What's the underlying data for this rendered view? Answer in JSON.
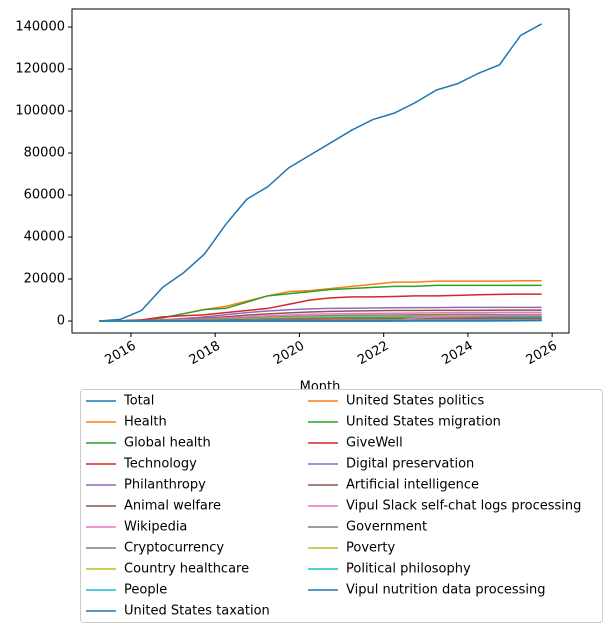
{
  "chart_data": {
    "type": "line",
    "xlabel": "Month",
    "x": [
      2015.25,
      2015.75,
      2016.25,
      2016.75,
      2017.25,
      2017.75,
      2018.25,
      2018.75,
      2019.25,
      2019.75,
      2020.25,
      2020.75,
      2021.25,
      2021.75,
      2022.25,
      2022.75,
      2023.25,
      2023.75,
      2024.25,
      2024.75,
      2025.25,
      2025.75
    ],
    "xlim": [
      2014.6,
      2026.4
    ],
    "xticks": [
      2016,
      2018,
      2020,
      2022,
      2024,
      2026
    ],
    "ylim": [
      -5700,
      148600
    ],
    "yticks": [
      0,
      20000,
      40000,
      60000,
      80000,
      100000,
      120000,
      140000
    ],
    "series": [
      {
        "name": "Total",
        "color": "#1f77b4",
        "values": [
          0,
          800,
          5000,
          16000,
          23000,
          32000,
          46000,
          58000,
          64000,
          73000,
          79000,
          85000,
          91000,
          96000,
          99000,
          104000,
          110000,
          113000,
          118000,
          122000,
          136000,
          141500
        ]
      },
      {
        "name": "Health",
        "color": "#ff7f0e",
        "values": [
          0,
          100,
          500,
          1500,
          3500,
          5500,
          7000,
          9500,
          12000,
          14000,
          14500,
          15500,
          16500,
          17500,
          18500,
          18500,
          19000,
          19000,
          19000,
          19000,
          19200,
          19200
        ]
      },
      {
        "name": "Global health",
        "color": "#2ca02c",
        "values": [
          0,
          100,
          500,
          1500,
          3500,
          5500,
          6000,
          9000,
          12000,
          13000,
          14000,
          15000,
          15500,
          16000,
          16500,
          16500,
          17000,
          17000,
          17000,
          17000,
          17000,
          17000
        ]
      },
      {
        "name": "Technology",
        "color": "#d62728",
        "values": [
          0,
          100,
          500,
          2000,
          2500,
          3000,
          4000,
          5000,
          6000,
          8000,
          10000,
          11000,
          11500,
          11500,
          11700,
          12000,
          12000,
          12200,
          12500,
          12700,
          12800,
          12800
        ]
      },
      {
        "name": "Philanthropy",
        "color": "#9467bd",
        "values": [
          0,
          50,
          200,
          600,
          1200,
          2000,
          3000,
          4000,
          4800,
          5400,
          5800,
          6000,
          6100,
          6200,
          6300,
          6400,
          6400,
          6500,
          6500,
          6500,
          6500,
          6500
        ]
      },
      {
        "name": "Animal welfare",
        "color": "#8c564b",
        "values": [
          0,
          50,
          150,
          400,
          800,
          1300,
          2000,
          2800,
          3400,
          3900,
          4300,
          4600,
          4800,
          4900,
          5000,
          5000,
          5100,
          5100,
          5100,
          5200,
          5200,
          5200
        ]
      },
      {
        "name": "Wikipedia",
        "color": "#e377c2",
        "values": [
          0,
          30,
          100,
          300,
          600,
          1000,
          1500,
          2000,
          2500,
          2900,
          3200,
          3400,
          3500,
          3600,
          3700,
          3800,
          3900,
          4000,
          4000,
          4100,
          4100,
          4100
        ]
      },
      {
        "name": "Cryptocurrency",
        "color": "#7f7f7f",
        "values": [
          0,
          20,
          80,
          200,
          400,
          700,
          1000,
          1400,
          1800,
          2100,
          2400,
          2600,
          2700,
          2800,
          2900,
          3000,
          3000,
          3100,
          3100,
          3100,
          3100,
          3100
        ]
      },
      {
        "name": "Country healthcare",
        "color": "#bcbd22",
        "values": [
          0,
          10,
          50,
          150,
          300,
          500,
          800,
          1100,
          1400,
          1600,
          1800,
          2000,
          2100,
          2200,
          2300,
          2300,
          2400,
          2400,
          2400,
          2500,
          2500,
          2500
        ]
      },
      {
        "name": "People",
        "color": "#17becf",
        "values": [
          0,
          10,
          40,
          100,
          200,
          400,
          600,
          800,
          1000,
          1200,
          1400,
          1500,
          1600,
          1700,
          1800,
          1800,
          1900,
          1900,
          1900,
          2000,
          2000,
          2000
        ]
      },
      {
        "name": "United States taxation",
        "color": "#1f77b4",
        "values": [
          0,
          0,
          20,
          80,
          150,
          300,
          450,
          600,
          800,
          1000,
          1100,
          1200,
          1300,
          1400,
          1500,
          1500,
          1600,
          1600,
          1600,
          1700,
          1700,
          1700
        ]
      },
      {
        "name": "United States politics",
        "color": "#ff7f0e",
        "values": [
          0,
          0,
          20,
          60,
          120,
          250,
          400,
          500,
          650,
          800,
          900,
          1000,
          1100,
          1200,
          1300,
          1300,
          1400,
          1400,
          1400,
          1400,
          1400,
          1400
        ]
      },
      {
        "name": "United States migration",
        "color": "#2ca02c",
        "values": [
          0,
          0,
          10,
          40,
          100,
          200,
          300,
          400,
          500,
          600,
          700,
          800,
          900,
          1000,
          1100,
          1100,
          1200,
          1200,
          1200,
          1200,
          1200,
          1200
        ]
      },
      {
        "name": "GiveWell",
        "color": "#d62728",
        "values": [
          0,
          0,
          10,
          30,
          80,
          150,
          250,
          350,
          450,
          550,
          650,
          700,
          750,
          800,
          850,
          900,
          950,
          1000,
          1000,
          1000,
          1000,
          1000
        ]
      },
      {
        "name": "Digital preservation",
        "color": "#9467bd",
        "values": [
          0,
          0,
          0,
          20,
          50,
          100,
          180,
          260,
          340,
          420,
          500,
          560,
          620,
          680,
          720,
          760,
          800,
          830,
          850,
          870,
          880,
          900
        ]
      },
      {
        "name": "Artificial intelligence",
        "color": "#8c564b",
        "values": [
          0,
          0,
          0,
          0,
          0,
          0,
          0,
          0,
          0,
          0,
          0,
          0,
          0,
          0,
          50,
          150,
          300,
          450,
          550,
          650,
          750,
          800
        ]
      },
      {
        "name": "Vipul Slack self-chat logs processing",
        "color": "#e377c2",
        "values": [
          0,
          0,
          0,
          0,
          0,
          0,
          0,
          0,
          0,
          0,
          0,
          0,
          0,
          0,
          0,
          1500,
          2000,
          2200,
          2400,
          2600,
          2700,
          2800
        ]
      },
      {
        "name": "Government",
        "color": "#7f7f7f",
        "values": [
          0,
          0,
          0,
          10,
          30,
          60,
          100,
          150,
          200,
          250,
          300,
          340,
          380,
          420,
          450,
          480,
          500,
          520,
          540,
          560,
          580,
          600
        ]
      },
      {
        "name": "Poverty",
        "color": "#bcbd22",
        "values": [
          0,
          0,
          0,
          5,
          20,
          40,
          70,
          100,
          140,
          180,
          220,
          250,
          280,
          300,
          320,
          340,
          360,
          380,
          400,
          420,
          430,
          440
        ]
      },
      {
        "name": "Political philosophy",
        "color": "#17becf",
        "values": [
          0,
          0,
          0,
          0,
          10,
          20,
          40,
          60,
          80,
          100,
          120,
          140,
          160,
          180,
          200,
          220,
          240,
          260,
          280,
          300,
          310,
          320
        ]
      },
      {
        "name": "Vipul nutrition data processing",
        "color": "#1f77b4",
        "values": [
          0,
          0,
          0,
          0,
          0,
          0,
          0,
          0,
          0,
          0,
          0,
          0,
          0,
          0,
          0,
          0,
          0,
          0,
          0,
          50,
          150,
          250
        ]
      }
    ]
  }
}
